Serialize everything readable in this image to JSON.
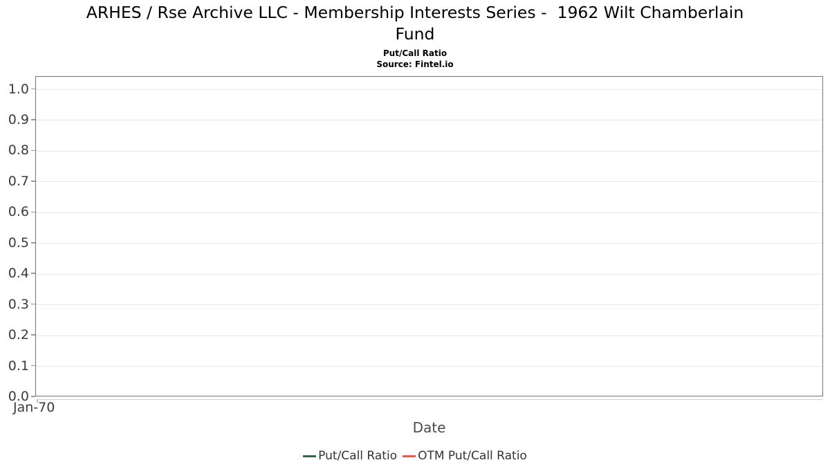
{
  "chart_data": {
    "type": "line",
    "title": "ARHES / Rse Archive LLC - Membership Interests Series -  1962 Wilt Chamberlain Fund",
    "title_lines": [
      "ARHES / Rse Archive LLC - Membership Interests Series -  1962 Wilt Chamberlain",
      "Fund"
    ],
    "subtitle": "Put/Call Ratio",
    "source": "Source: Fintel.io",
    "xlabel": "Date",
    "ylabel": "",
    "xtick_labels": [
      "Jan-70"
    ],
    "ytick_labels": [
      "1.0",
      "0.9",
      "0.8",
      "0.7",
      "0.6",
      "0.5",
      "0.4",
      "0.3",
      "0.2",
      "0.1",
      "0.0"
    ],
    "ylim": [
      0.0,
      1.04
    ],
    "grid": "horizontal",
    "legend_position": "bottom-center",
    "series": [
      {
        "name": "Put/Call Ratio",
        "color": "#2e6b40",
        "x": [],
        "y": []
      },
      {
        "name": "OTM Put/Call Ratio",
        "color": "#f4534e",
        "x": [],
        "y": []
      }
    ],
    "style": {
      "grid_color": "#e7e7e7",
      "axis_border_color": "#737373",
      "tick_mark_color": "#999999",
      "tick_label_color": "#3b3b3b"
    }
  }
}
